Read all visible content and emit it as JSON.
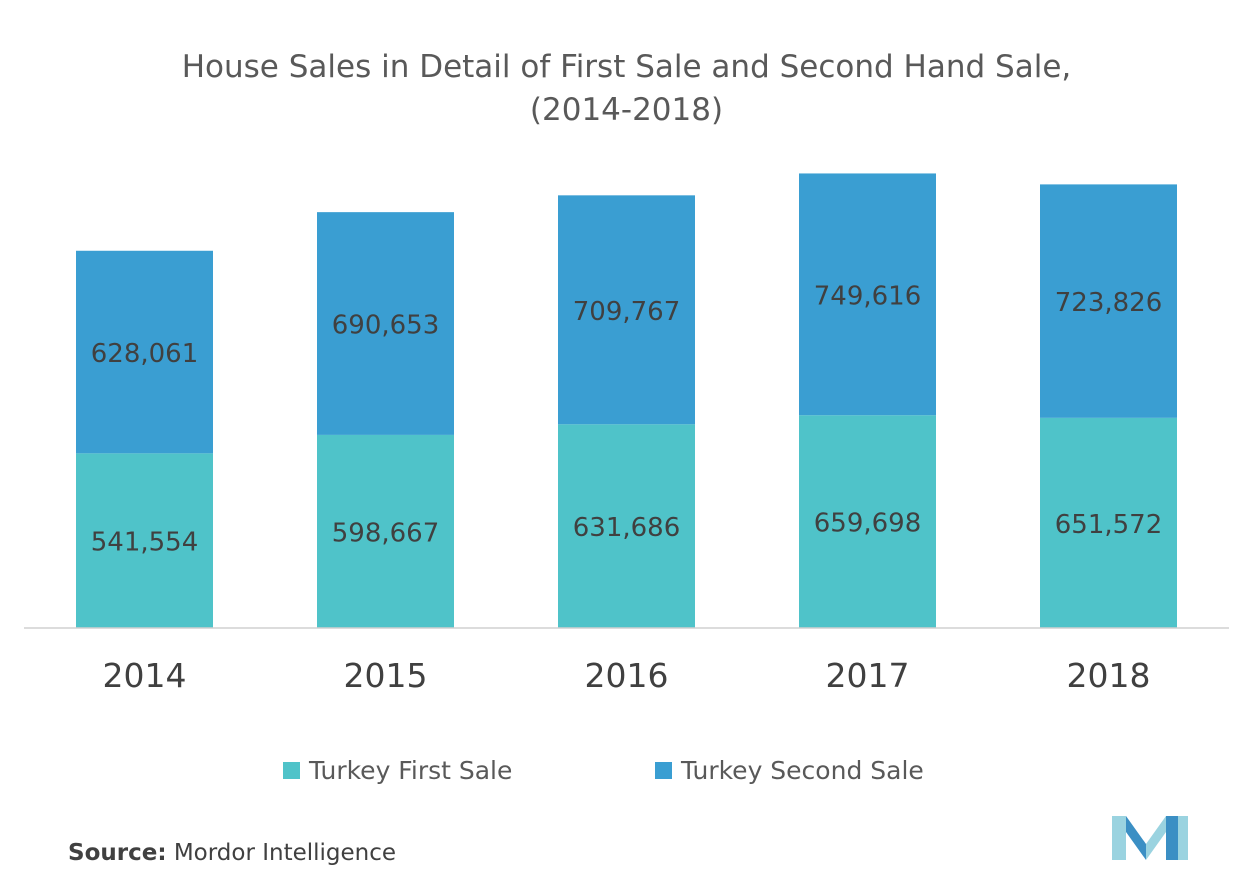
{
  "colors": {
    "first_sale": "#4fc3c9",
    "second_sale": "#3a9ed2",
    "axis_line": "#d0d0d0",
    "label_text": "#404040",
    "logo_light": "#9ad3e0",
    "logo_dark": "#3b8fc4"
  },
  "source": {
    "label": "Source:",
    "text": "Mordor Intelligence"
  },
  "logo_icon": "mordor-intelligence-logo-icon",
  "chart_data": {
    "type": "bar",
    "stacked": true,
    "title_line1": "House Sales in Detail of First Sale and Second Hand Sale,",
    "title_line2": "(2014-2018)",
    "xlabel": "",
    "ylabel": "",
    "categories": [
      "2014",
      "2015",
      "2016",
      "2017",
      "2018"
    ],
    "ylim": [
      0,
      1420000
    ],
    "grid": false,
    "legend_position": "bottom",
    "series": [
      {
        "name": "Turkey First Sale",
        "values": [
          541554,
          598667,
          631686,
          659698,
          651572
        ],
        "labels": [
          "541,554",
          "598,667",
          "631,686",
          "659,698",
          "651,572"
        ]
      },
      {
        "name": "Turkey Second Sale",
        "values": [
          628061,
          690653,
          709767,
          749616,
          723826
        ],
        "labels": [
          "628,061",
          "690,653",
          "709,767",
          "749,616",
          "723,826"
        ]
      }
    ]
  }
}
